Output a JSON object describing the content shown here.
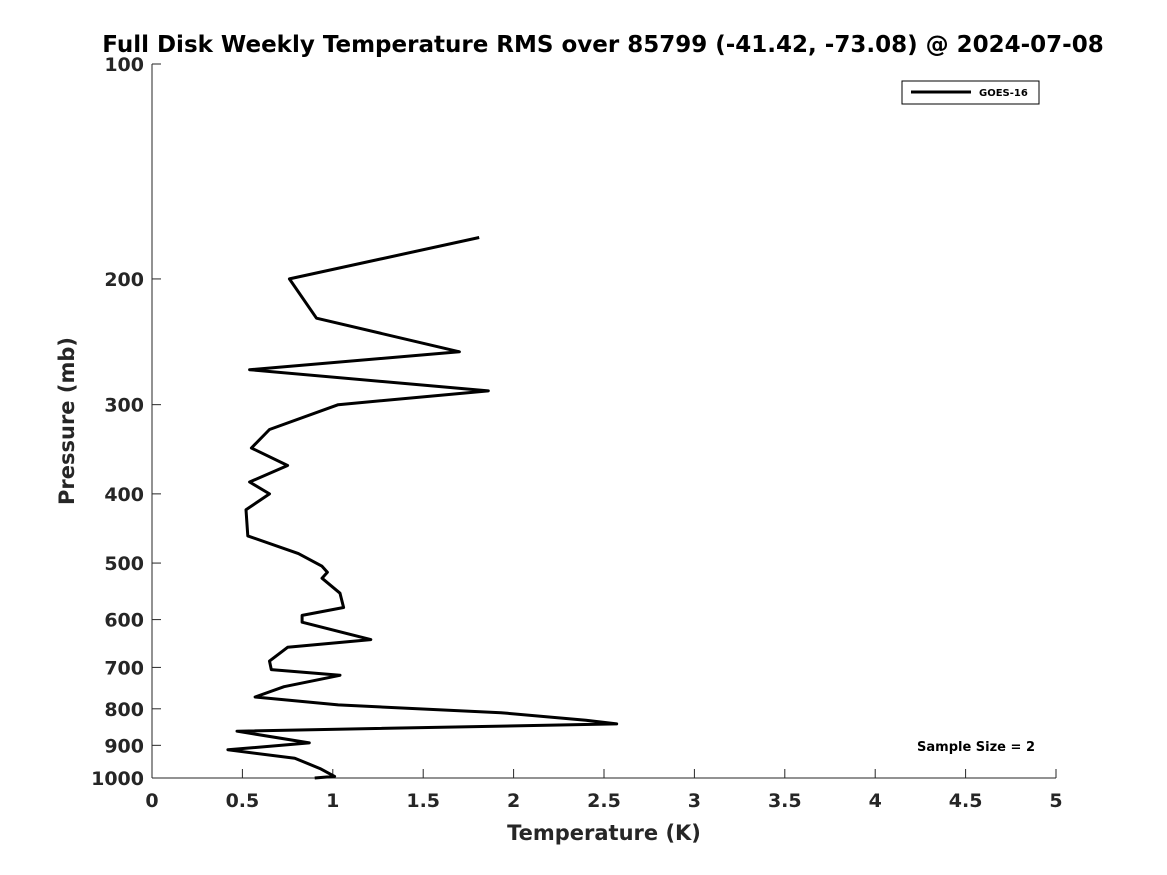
{
  "chart_data": {
    "type": "line",
    "title": "Full Disk Weekly Temperature RMS over 85799 (-41.42, -73.08) @ 2024-07-08",
    "xlabel": "Temperature (K)",
    "ylabel": "Pressure (mb)",
    "xlim": [
      0,
      5
    ],
    "ylim": [
      1000,
      100
    ],
    "y_scale": "log",
    "y_reversed": true,
    "grid": false,
    "x_ticks": [
      "0",
      "0.5",
      "1",
      "1.5",
      "2",
      "2.5",
      "3",
      "3.5",
      "4",
      "4.5",
      "5"
    ],
    "y_ticks": [
      "100",
      "200",
      "300",
      "400",
      "500",
      "600",
      "700",
      "800",
      "900",
      "1000"
    ],
    "legend_position": "top-right",
    "annotation": "Sample Size = 2",
    "series": [
      {
        "name": "GOES-16",
        "color": "#000000",
        "points": [
          [
            1.81,
            175
          ],
          [
            0.76,
            200
          ],
          [
            0.91,
            227
          ],
          [
            1.7,
            253
          ],
          [
            0.54,
            268
          ],
          [
            1.86,
            287
          ],
          [
            1.03,
            300
          ],
          [
            0.65,
            325
          ],
          [
            0.55,
            345
          ],
          [
            0.75,
            365
          ],
          [
            0.54,
            385
          ],
          [
            0.65,
            400
          ],
          [
            0.52,
            421
          ],
          [
            0.53,
            458
          ],
          [
            0.81,
            485
          ],
          [
            0.94,
            505
          ],
          [
            0.97,
            515
          ],
          [
            0.94,
            525
          ],
          [
            1.04,
            551
          ],
          [
            1.06,
            577
          ],
          [
            0.83,
            592
          ],
          [
            0.83,
            605
          ],
          [
            1.21,
            640
          ],
          [
            0.75,
            656
          ],
          [
            0.65,
            686
          ],
          [
            0.66,
            705
          ],
          [
            1.04,
            718
          ],
          [
            0.73,
            745
          ],
          [
            0.57,
            770
          ],
          [
            1.03,
            790
          ],
          [
            1.93,
            810
          ],
          [
            2.4,
            830
          ],
          [
            2.57,
            840
          ],
          [
            0.47,
            860
          ],
          [
            0.87,
            893
          ],
          [
            0.42,
            913
          ],
          [
            0.79,
            938
          ],
          [
            0.93,
            970
          ],
          [
            1.01,
            995
          ],
          [
            0.9,
            1000
          ]
        ]
      }
    ]
  }
}
